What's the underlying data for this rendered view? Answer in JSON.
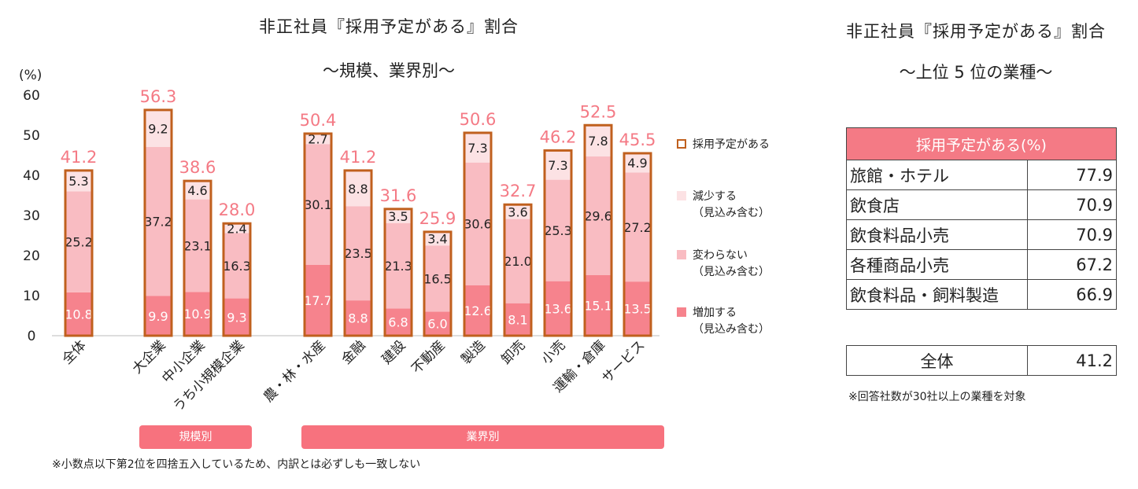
{
  "left_panel": {
    "title": "非正社員『採用予定がある』割合",
    "subtitle": "～規模、業界別～",
    "footnote": "※小数点以下第2位を四捨五入しているため、内訳とは必ずしも一致しない",
    "group_labels": {
      "size": "規模別",
      "industry": "業界別"
    }
  },
  "legend": [
    {
      "key": "total",
      "label": "採用予定がある",
      "color": "#c0601e"
    },
    {
      "key": "decrease",
      "label": "減少する\n（見込み含む）",
      "color": "#fce2e4"
    },
    {
      "key": "same",
      "label": "変わらない\n（見込み含む）",
      "color": "#f9bcc2"
    },
    {
      "key": "increase",
      "label": "増加する\n（見込み含む）",
      "color": "#f6838d"
    }
  ],
  "chart_data": {
    "type": "bar",
    "stacked": true,
    "title": "非正社員『採用予定がある』割合",
    "subtitle": "～規模、業界別～",
    "ylabel": "(%)",
    "ylim": [
      0,
      60
    ],
    "yticks": [
      0,
      10,
      20,
      30,
      40,
      50,
      60
    ],
    "categories": [
      "全体",
      "大企業",
      "中小企業",
      "うち小規模企業",
      "農・林・水産",
      "金融",
      "建設",
      "不動産",
      "製造",
      "卸売",
      "小売",
      "運輸・倉庫",
      "サービス"
    ],
    "series": [
      {
        "name": "増加する（見込み含む）",
        "values": [
          10.8,
          9.9,
          10.9,
          9.3,
          17.7,
          8.8,
          6.8,
          6.0,
          12.6,
          8.1,
          13.6,
          15.1,
          13.5
        ]
      },
      {
        "name": "変わらない（見込み含む）",
        "values": [
          25.2,
          37.2,
          23.1,
          16.3,
          30.1,
          23.5,
          21.3,
          16.5,
          30.6,
          21.0,
          25.3,
          29.6,
          27.2
        ]
      },
      {
        "name": "減少する（見込み含む）",
        "values": [
          5.3,
          9.2,
          4.6,
          2.4,
          2.7,
          8.8,
          3.5,
          3.4,
          7.3,
          3.6,
          7.3,
          7.8,
          4.9
        ]
      }
    ],
    "totals": [
      41.2,
      56.3,
      38.6,
      28.0,
      50.4,
      41.2,
      31.6,
      25.9,
      50.6,
      32.7,
      46.2,
      52.5,
      45.5
    ],
    "total_label": "採用予定がある",
    "groups": [
      {
        "label": "規模別",
        "categories": [
          "大企業",
          "中小企業",
          "うち小規模企業"
        ]
      },
      {
        "label": "業界別",
        "categories": [
          "農・林・水産",
          "金融",
          "建設",
          "不動産",
          "製造",
          "卸売",
          "小売",
          "運輸・倉庫",
          "サービス"
        ]
      }
    ]
  },
  "right_panel": {
    "title": "非正社員『採用予定がある』割合",
    "subtitle": "～上位 5 位の業種～",
    "table_header": "採用予定がある(%)",
    "rows": [
      {
        "label": "旅館・ホテル",
        "value": "77.9"
      },
      {
        "label": "飲食店",
        "value": "70.9"
      },
      {
        "label": "飲食料品小売",
        "value": "70.9"
      },
      {
        "label": "各種商品小売",
        "value": "67.2"
      },
      {
        "label": "飲食料品・飼料製造",
        "value": "66.9"
      }
    ],
    "total_row": {
      "label": "全体",
      "value": "41.2"
    },
    "note": "※回答社数が30社以上の業種を対象"
  }
}
